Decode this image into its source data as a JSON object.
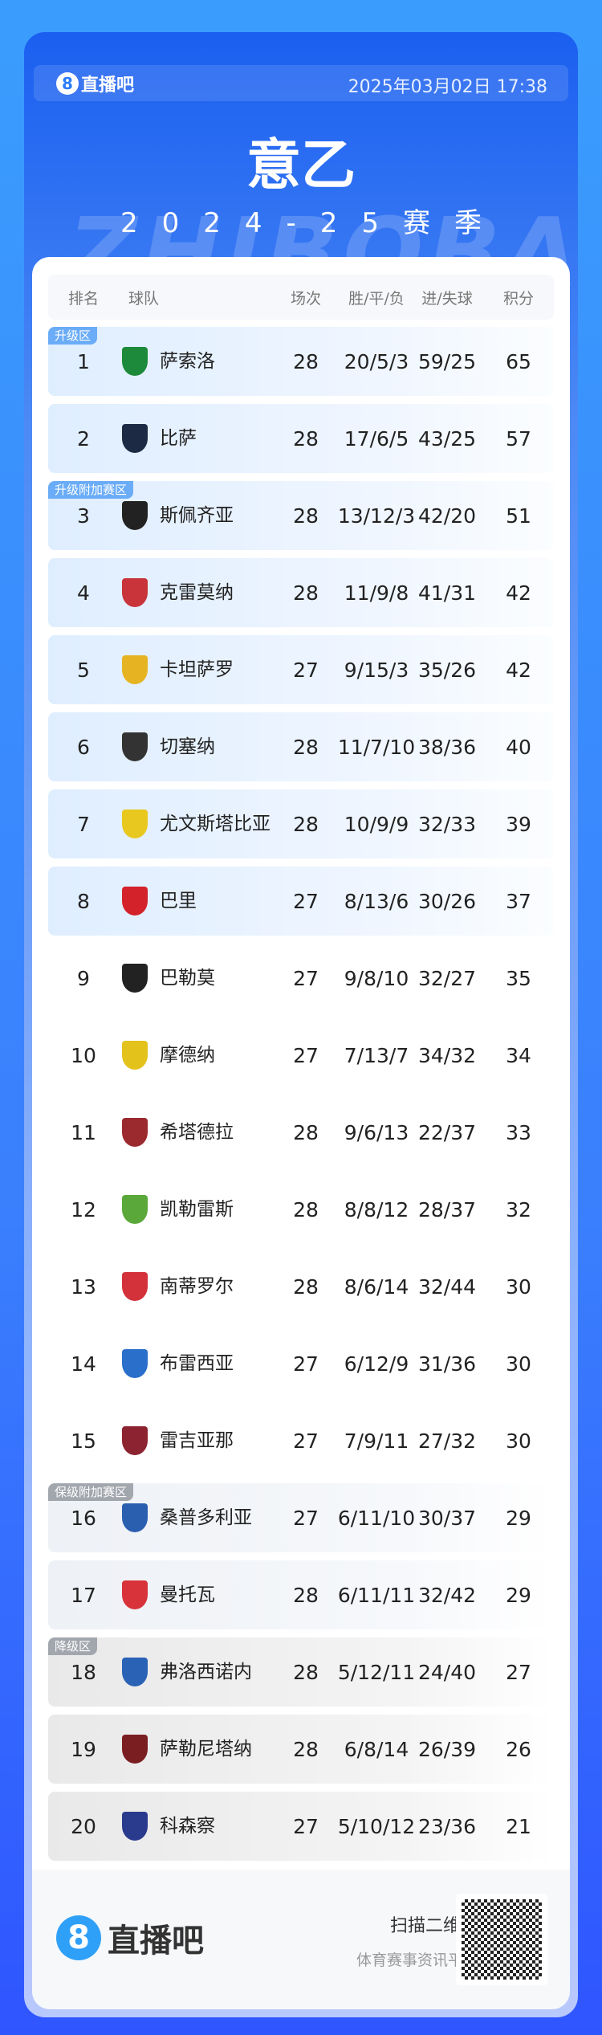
{
  "header": {
    "brand": "直播吧",
    "brand_icon": "8",
    "datetime": "2025年03月02日 17:38",
    "title": "意乙",
    "season": "2024-25赛季",
    "watermark": "ZHIBOBA"
  },
  "table": {
    "columns": {
      "rank": "排名",
      "team": "球队",
      "played": "场次",
      "wdl": "胜/平/负",
      "goals": "进/失球",
      "points": "积分"
    },
    "zones": {
      "promo": "升级区",
      "promo_playoff": "升级附加赛区",
      "relegation_playoff": "保级附加赛区",
      "relegation": "降级区"
    },
    "zone_colors": {
      "promo": "#6aacf7",
      "relegation": "#a2a6ad"
    },
    "rows": [
      {
        "rank": "1",
        "team": "萨索洛",
        "played": "28",
        "wdl": "20/5/3",
        "goals": "59/25",
        "points": "65",
        "zone": "promo",
        "badge": "升级区",
        "logo_color": "#1c8a3a"
      },
      {
        "rank": "2",
        "team": "比萨",
        "played": "28",
        "wdl": "17/6/5",
        "goals": "43/25",
        "points": "57",
        "zone": "promo",
        "logo_color": "#1d2a44"
      },
      {
        "rank": "3",
        "team": "斯佩齐亚",
        "played": "28",
        "wdl": "13/12/3",
        "goals": "42/20",
        "points": "51",
        "zone": "promo",
        "badge": "升级附加赛区",
        "logo_color": "#222222"
      },
      {
        "rank": "4",
        "team": "克雷莫纳",
        "played": "28",
        "wdl": "11/9/8",
        "goals": "41/31",
        "points": "42",
        "zone": "promo",
        "logo_color": "#c8343a"
      },
      {
        "rank": "5",
        "team": "卡坦萨罗",
        "played": "27",
        "wdl": "9/15/3",
        "goals": "35/26",
        "points": "42",
        "zone": "promo",
        "logo_color": "#e6b422"
      },
      {
        "rank": "6",
        "team": "切塞纳",
        "played": "28",
        "wdl": "11/7/10",
        "goals": "38/36",
        "points": "40",
        "zone": "promo",
        "logo_color": "#333333"
      },
      {
        "rank": "7",
        "team": "尤文斯塔比亚",
        "played": "28",
        "wdl": "10/9/9",
        "goals": "32/33",
        "points": "39",
        "zone": "promo",
        "logo_color": "#e8c81e"
      },
      {
        "rank": "8",
        "team": "巴里",
        "played": "27",
        "wdl": "8/13/6",
        "goals": "30/26",
        "points": "37",
        "zone": "promo",
        "logo_color": "#d3222a"
      },
      {
        "rank": "9",
        "team": "巴勒莫",
        "played": "27",
        "wdl": "9/8/10",
        "goals": "32/27",
        "points": "35",
        "zone": "normal",
        "logo_color": "#222222"
      },
      {
        "rank": "10",
        "team": "摩德纳",
        "played": "27",
        "wdl": "7/13/7",
        "goals": "34/32",
        "points": "34",
        "zone": "normal",
        "logo_color": "#e4c21c"
      },
      {
        "rank": "11",
        "team": "希塔德拉",
        "played": "28",
        "wdl": "9/6/13",
        "goals": "22/37",
        "points": "33",
        "zone": "normal",
        "logo_color": "#9b2a2e"
      },
      {
        "rank": "12",
        "team": "凯勒雷斯",
        "played": "28",
        "wdl": "8/8/12",
        "goals": "28/37",
        "points": "32",
        "zone": "normal",
        "logo_color": "#5aa83a"
      },
      {
        "rank": "13",
        "team": "南蒂罗尔",
        "played": "28",
        "wdl": "8/6/14",
        "goals": "32/44",
        "points": "30",
        "zone": "normal",
        "logo_color": "#d3323a"
      },
      {
        "rank": "14",
        "team": "布雷西亚",
        "played": "27",
        "wdl": "6/12/9",
        "goals": "31/36",
        "points": "30",
        "zone": "normal",
        "logo_color": "#2a6fc9"
      },
      {
        "rank": "15",
        "team": "雷吉亚那",
        "played": "27",
        "wdl": "7/9/11",
        "goals": "27/32",
        "points": "30",
        "zone": "normal",
        "logo_color": "#8c2330"
      },
      {
        "rank": "16",
        "team": "桑普多利亚",
        "played": "27",
        "wdl": "6/11/10",
        "goals": "30/37",
        "points": "29",
        "zone": "playout",
        "badge": "保级附加赛区",
        "logo_color": "#2a5fb0"
      },
      {
        "rank": "17",
        "team": "曼托瓦",
        "played": "28",
        "wdl": "6/11/11",
        "goals": "32/42",
        "points": "29",
        "zone": "playout",
        "logo_color": "#d8323a"
      },
      {
        "rank": "18",
        "team": "弗洛西诺内",
        "played": "28",
        "wdl": "5/12/11",
        "goals": "24/40",
        "points": "27",
        "zone": "releg",
        "badge": "降级区",
        "logo_color": "#2a62b5"
      },
      {
        "rank": "19",
        "team": "萨勒尼塔纳",
        "played": "28",
        "wdl": "6/8/14",
        "goals": "26/39",
        "points": "26",
        "zone": "releg",
        "logo_color": "#7a1e22"
      },
      {
        "rank": "20",
        "team": "科森察",
        "played": "27",
        "wdl": "5/10/12",
        "goals": "23/36",
        "points": "21",
        "zone": "releg",
        "logo_color": "#2a3a8c"
      }
    ]
  },
  "footer": {
    "brand": "直播吧",
    "brand_icon": "8",
    "scan": "扫描二维码",
    "platform": "体育赛事资讯平台"
  }
}
